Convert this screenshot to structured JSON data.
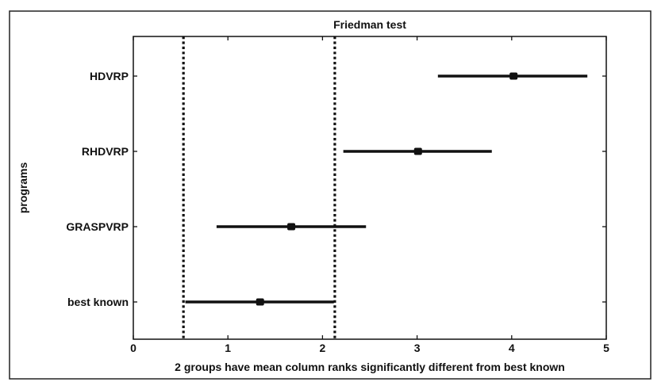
{
  "chart_data": {
    "type": "scatter",
    "title": "Friedman test",
    "xlabel": "2 groups have mean column ranks significantly different from best known",
    "ylabel": "programs",
    "xlim": [
      0,
      5
    ],
    "xticks": [
      "0",
      "1",
      "2",
      "3",
      "4",
      "5"
    ],
    "categories": [
      "HDVRP",
      "RHDVRP",
      "GRASPVRP",
      "best known"
    ],
    "means": [
      4.02,
      3.01,
      1.67,
      1.34
    ],
    "intervals": [
      [
        3.22,
        4.8
      ],
      [
        2.22,
        3.79
      ],
      [
        0.88,
        2.46
      ],
      [
        0.55,
        2.12
      ]
    ],
    "reference_lines": [
      0.53,
      2.13
    ],
    "grid": false
  }
}
